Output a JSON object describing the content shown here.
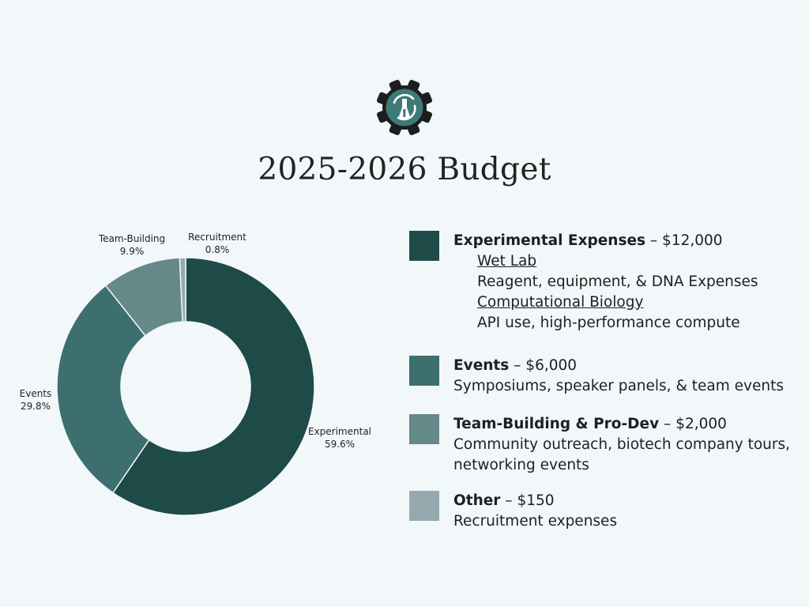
{
  "title": "2025-2026 Budget",
  "colors": {
    "background": "#f2f7fa",
    "experimental": "#1e4a48",
    "events": "#3d6f6e",
    "team_building": "#658888",
    "other": "#94aaae",
    "logo_gear": "#1d1d1d",
    "logo_inner": "#3e7a78"
  },
  "logo": {
    "icon": "gear-with-flask-icon"
  },
  "chart_data": {
    "type": "pie",
    "donut": true,
    "categories": [
      "Experimental",
      "Events",
      "Team-Building",
      "Recruitment"
    ],
    "values": [
      12000,
      6000,
      2000,
      150
    ],
    "percent_labels": [
      "59.6%",
      "29.8%",
      "9.9%",
      "0.8%"
    ]
  },
  "legend": [
    {
      "name": "Experimental Expenses",
      "amount": "$12,000",
      "color": "#1e4a48",
      "subsections": [
        {
          "title": "Wet Lab",
          "desc": "Reagent, equipment, & DNA Expenses"
        },
        {
          "title": "Computational Biology",
          "desc": "API use, high-performance compute"
        }
      ]
    },
    {
      "name": "Events",
      "amount": "$6,000",
      "color": "#3d6f6e",
      "desc": "Symposiums, speaker panels, & team events"
    },
    {
      "name": "Team-Building & Pro-Dev",
      "amount": "$2,000",
      "color": "#658888",
      "desc": "Community outreach, biotech company tours, networking events"
    },
    {
      "name": "Other",
      "amount": "$150",
      "color": "#94aaae",
      "desc": "Recruitment expenses"
    }
  ]
}
